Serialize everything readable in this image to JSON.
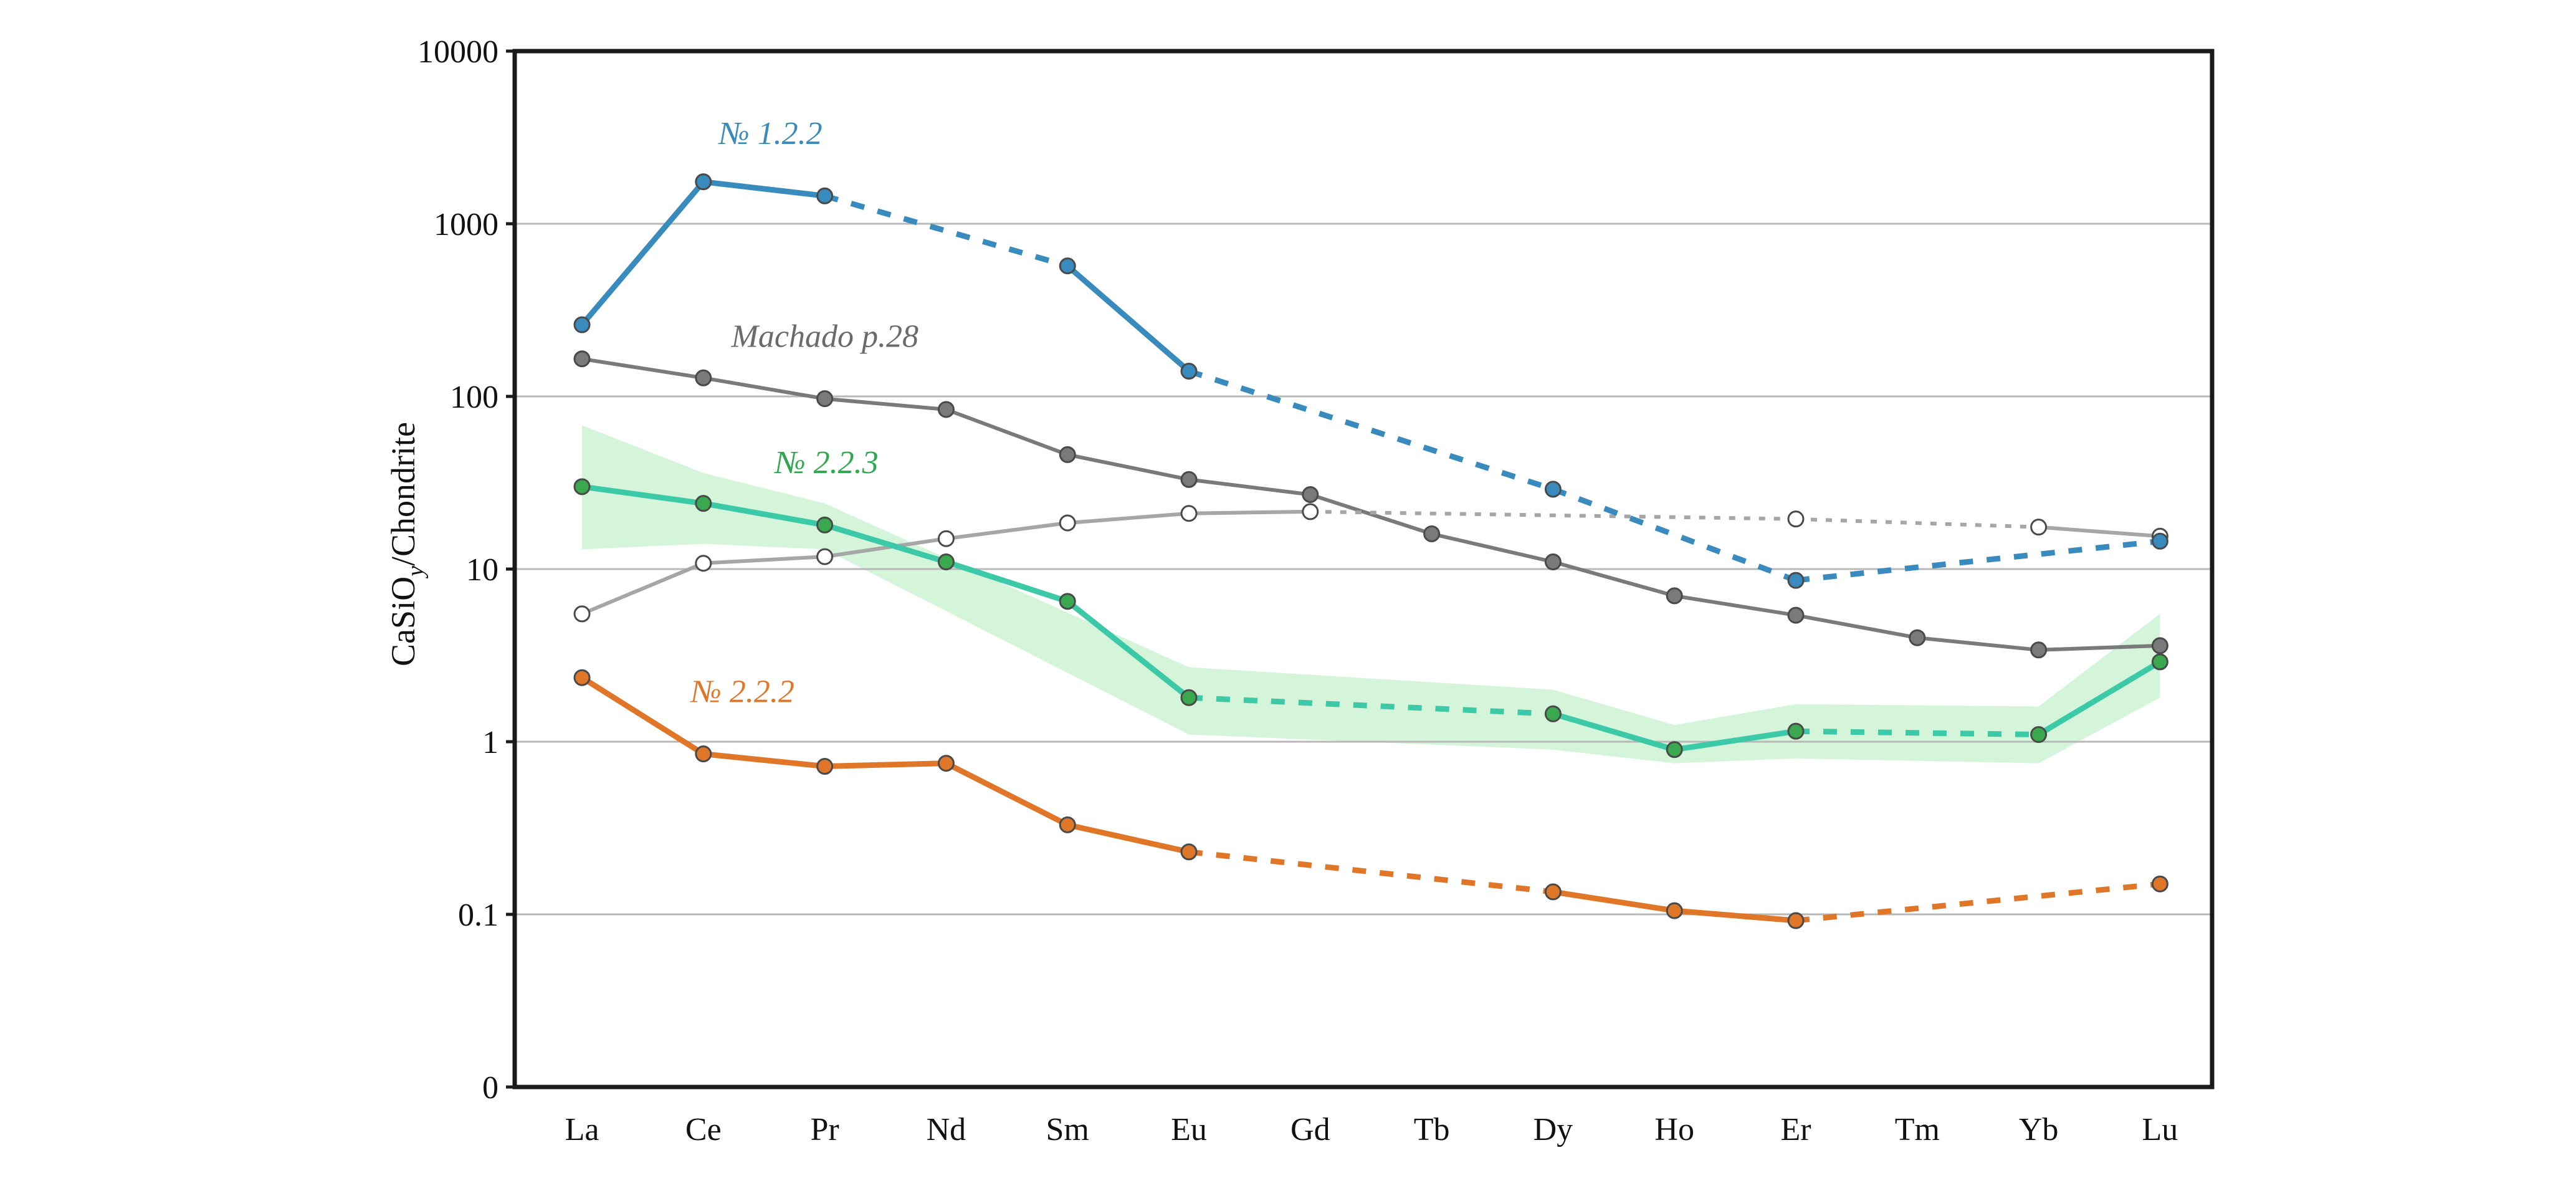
{
  "chart_data": {
    "type": "line",
    "ylabel": "CaSiO",
    "ylabel_subscript": "y",
    "ylabel_suffix": "/Chondrite",
    "xlabel": "",
    "y_scale": "log",
    "ylim": [
      0.01,
      10000
    ],
    "y_ticks": [
      {
        "value": 10000,
        "label": "10000"
      },
      {
        "value": 1000,
        "label": "1000"
      },
      {
        "value": 100,
        "label": "100"
      },
      {
        "value": 10,
        "label": "10"
      },
      {
        "value": 1,
        "label": "1"
      },
      {
        "value": 0.1,
        "label": "0.1"
      },
      {
        "value": 0.01,
        "label": "0"
      }
    ],
    "grid": "horizontal",
    "categories": [
      "La",
      "Ce",
      "Pr",
      "Nd",
      "Sm",
      "Eu",
      "Gd",
      "Tb",
      "Dy",
      "Ho",
      "Er",
      "Tm",
      "Yb",
      "Lu"
    ],
    "series": [
      {
        "name": "Machado p.28",
        "color": "#7a7a7a",
        "marker_fill": "#7a7a7a",
        "label_color": "#6b6b6b",
        "values": [
          165,
          128,
          97,
          84,
          46,
          33,
          27,
          16,
          11,
          7,
          5.4,
          4,
          3.4,
          3.6
        ],
        "segments": [
          {
            "from": 0,
            "to": 13,
            "style": "solid"
          }
        ]
      },
      {
        "name": "",
        "color": "#a6a6a6",
        "marker_fill": "#ffffff",
        "values": [
          5.5,
          10.8,
          11.8,
          15,
          18.5,
          21,
          21.5,
          null,
          null,
          null,
          19.5,
          null,
          17.5,
          15.5
        ],
        "segments": [
          {
            "from": 0,
            "to": 6,
            "style": "solid"
          },
          {
            "from": 6,
            "to": 10,
            "style": "dotted"
          },
          {
            "from": 10,
            "to": 12,
            "style": "dotted"
          },
          {
            "from": 12,
            "to": 13,
            "style": "solid"
          }
        ]
      },
      {
        "name": "№ 1.2.2",
        "color": "#3a8bbd",
        "marker_fill": "#3a8bbd",
        "label_color": "#3a8bbd",
        "values": [
          260,
          1750,
          1450,
          null,
          570,
          140,
          null,
          null,
          29,
          null,
          8.6,
          null,
          null,
          14.5
        ],
        "segments": [
          {
            "from": 0,
            "to": 2,
            "style": "solid"
          },
          {
            "from": 2,
            "to": 4,
            "style": "dashed"
          },
          {
            "from": 4,
            "to": 5,
            "style": "solid"
          },
          {
            "from": 5,
            "to": 8,
            "style": "dashed"
          },
          {
            "from": 8,
            "to": 10,
            "style": "dashed"
          },
          {
            "from": 10,
            "to": 13,
            "style": "dashed"
          }
        ]
      },
      {
        "name": "№ 2.2.3",
        "color": "#3cc9a8",
        "marker_fill": "#3aa84e",
        "label_color": "#2fa84e",
        "band_color": "#cdf3d4",
        "values": [
          30,
          24,
          18,
          11,
          6.5,
          1.8,
          null,
          null,
          1.45,
          0.9,
          1.15,
          null,
          1.1,
          2.9
        ],
        "band_lower": [
          13,
          14,
          13,
          null,
          null,
          1.1,
          null,
          null,
          0.9,
          0.75,
          0.8,
          null,
          0.75,
          1.8
        ],
        "band_upper": [
          68,
          36,
          24,
          null,
          null,
          2.7,
          null,
          null,
          2.0,
          1.25,
          1.65,
          null,
          1.6,
          5.5
        ],
        "segments": [
          {
            "from": 0,
            "to": 5,
            "style": "solid"
          },
          {
            "from": 5,
            "to": 8,
            "style": "dashed"
          },
          {
            "from": 8,
            "to": 10,
            "style": "solid"
          },
          {
            "from": 10,
            "to": 12,
            "style": "dashed"
          },
          {
            "from": 12,
            "to": 13,
            "style": "solid"
          }
        ]
      },
      {
        "name": "№ 2.2.2",
        "color": "#e07628",
        "marker_fill": "#e07628",
        "label_color": "#e07628",
        "values": [
          2.35,
          0.85,
          0.72,
          0.75,
          0.33,
          0.23,
          null,
          null,
          0.135,
          0.105,
          0.092,
          null,
          null,
          0.15
        ],
        "segments": [
          {
            "from": 0,
            "to": 5,
            "style": "solid"
          },
          {
            "from": 5,
            "to": 8,
            "style": "dashed"
          },
          {
            "from": 8,
            "to": 10,
            "style": "solid"
          },
          {
            "from": 10,
            "to": 13,
            "style": "dashed"
          }
        ]
      }
    ]
  }
}
